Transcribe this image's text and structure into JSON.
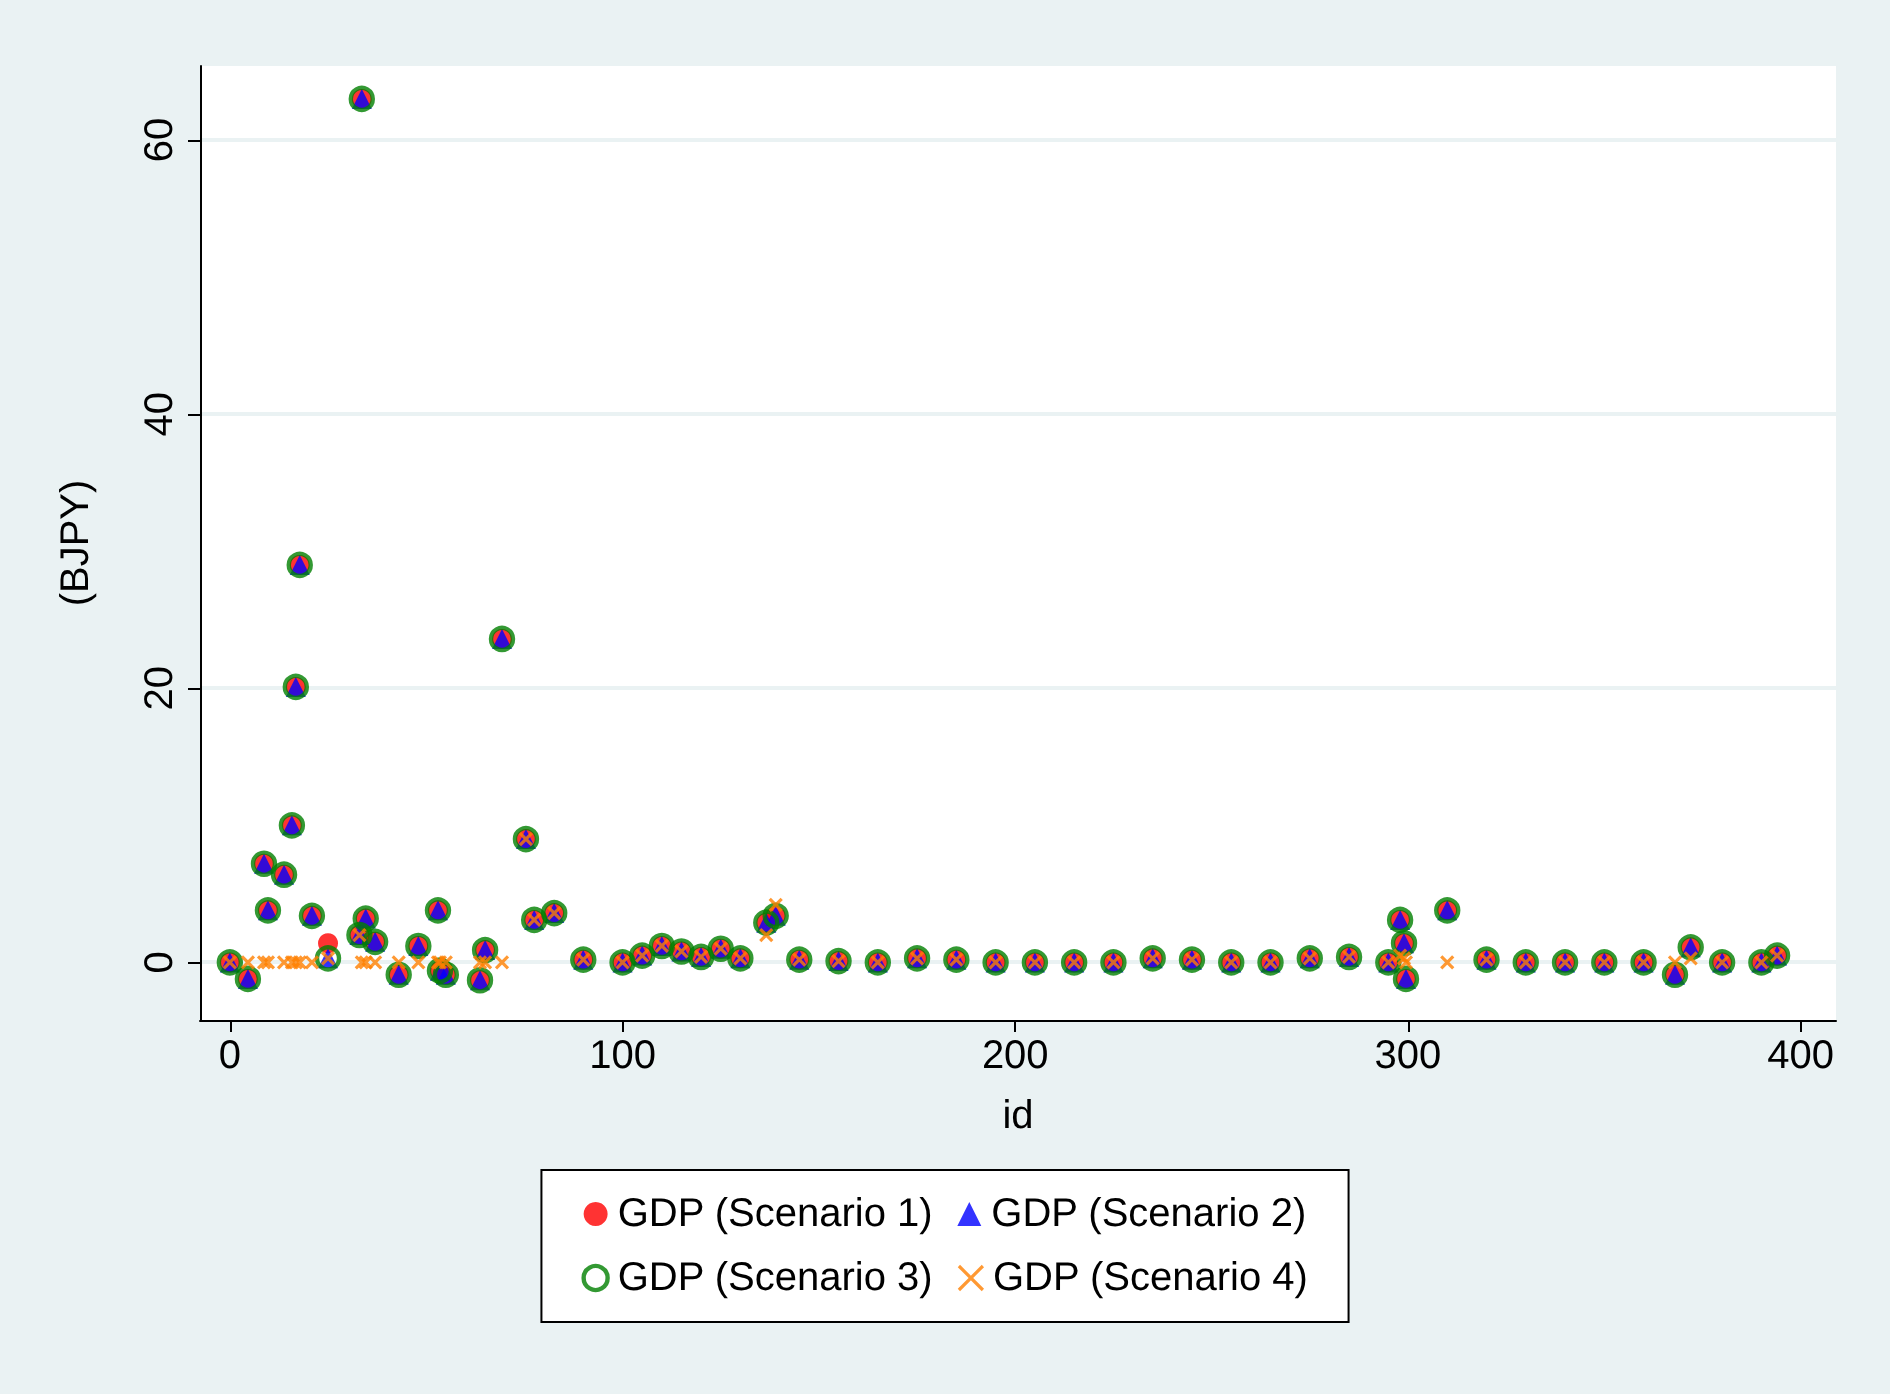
{
  "chart_data": {
    "type": "scatter",
    "xlabel": "id",
    "ylabel": "(BJPY)",
    "x": [
      0,
      4.6,
      8.7,
      9.7,
      13.8,
      15.8,
      16.8,
      17.8,
      20.9,
      25,
      33,
      33.6,
      34.6,
      37,
      43,
      48,
      53,
      53.5,
      55,
      63.7,
      65,
      69.3,
      75.4,
      77.5,
      82.6,
      90,
      100,
      105,
      110,
      115,
      120,
      125,
      130,
      136.6,
      139,
      145,
      155,
      165,
      175,
      185,
      195,
      205,
      215,
      225,
      235,
      245,
      255,
      265,
      275,
      285,
      295,
      298,
      299,
      299.5,
      310,
      320,
      330,
      340,
      350,
      360,
      368,
      372,
      380,
      390,
      394
    ],
    "series": [
      {
        "name": "GDP (Scenario 1)",
        "color": "#ff0000",
        "marker": "circle",
        "values": [
          0,
          -1.2,
          7.2,
          3.8,
          6.4,
          10,
          20.1,
          29,
          3.4,
          1.4,
          2.0,
          63,
          3.2,
          1.5,
          -0.9,
          1.2,
          3.8,
          -0.6,
          -0.9,
          -1.3,
          0.9,
          23.6,
          9,
          3.1,
          3.6,
          0.2,
          0,
          0.5,
          1.2,
          0.8,
          0.4,
          1,
          0.3,
          2.9,
          3.4,
          0.2,
          0.1,
          0,
          0.3,
          0.2,
          0,
          0,
          0,
          0,
          0.3,
          0.2,
          0,
          0,
          0.3,
          0.4,
          0,
          3.1,
          1.4,
          -1.2,
          3.8,
          0.2,
          0,
          0,
          0,
          0,
          -0.9,
          1.1,
          0,
          0,
          0.5
        ]
      },
      {
        "name": "GDP (Scenario 2)",
        "color": "#0000ff",
        "marker": "triangle",
        "values": [
          0,
          -1.2,
          7.2,
          3.8,
          6.4,
          10,
          20.1,
          29,
          3.4,
          0.3,
          2.0,
          63,
          3.2,
          1.5,
          -0.9,
          1.2,
          3.8,
          -0.6,
          -0.9,
          -1.3,
          0.9,
          23.6,
          9,
          3.1,
          3.6,
          0.2,
          0,
          0.5,
          1.2,
          0.8,
          0.4,
          1,
          0.3,
          2.9,
          3.4,
          0.2,
          0.1,
          0,
          0.3,
          0.2,
          0,
          0,
          0,
          0,
          0.3,
          0.2,
          0,
          0,
          0.3,
          0.4,
          0,
          3.1,
          1.4,
          -1.2,
          3.8,
          0.2,
          0,
          0,
          0,
          0,
          -0.9,
          1.1,
          0,
          0,
          0.5
        ]
      },
      {
        "name": "GDP (Scenario 3)",
        "color": "#008000",
        "marker": "circle",
        "values": [
          0,
          -1.2,
          7.2,
          3.8,
          6.4,
          10,
          20.1,
          29,
          3.4,
          0.3,
          2.0,
          63,
          3.2,
          1.5,
          -0.9,
          1.2,
          3.8,
          -0.6,
          -0.9,
          -1.3,
          0.9,
          23.6,
          9,
          3.1,
          3.6,
          0.2,
          0,
          0.5,
          1.2,
          0.8,
          0.4,
          1,
          0.3,
          2.9,
          3.4,
          0.2,
          0.1,
          0,
          0.3,
          0.2,
          0,
          0,
          0,
          0,
          0.3,
          0.2,
          0,
          0,
          0.3,
          0.4,
          0,
          3.1,
          1.4,
          -1.2,
          3.8,
          0.2,
          0,
          0,
          0,
          0,
          -0.9,
          1.1,
          0,
          0,
          0.5
        ]
      },
      {
        "name": "GDP (Scenario 4)",
        "color": "#ff8000",
        "marker": "cross",
        "values": [
          0,
          0,
          0,
          0,
          0,
          0,
          0,
          0,
          0,
          0.3,
          2.0,
          0,
          0,
          0,
          0,
          0,
          0,
          0,
          0,
          0,
          0,
          0,
          9,
          3.1,
          3.6,
          0.2,
          0,
          0.5,
          1.2,
          0.8,
          0.4,
          1,
          0.3,
          2.0,
          4.2,
          0.2,
          0.1,
          0,
          0.3,
          0.2,
          0,
          0,
          0,
          0,
          0.3,
          0.2,
          0,
          0,
          0.3,
          0.4,
          0,
          0.5,
          0.3,
          0,
          0,
          0.2,
          0,
          0,
          0,
          0,
          0,
          0.3,
          0,
          0,
          0.5
        ]
      }
    ],
    "xlim": [
      -7.6,
      409
    ],
    "xticks": [
      0,
      100,
      200,
      300,
      400
    ],
    "ylim": [
      -4.2,
      65.4
    ],
    "yticks": [
      0,
      20,
      40,
      60
    ],
    "grid": "y",
    "legend": "bottom"
  }
}
